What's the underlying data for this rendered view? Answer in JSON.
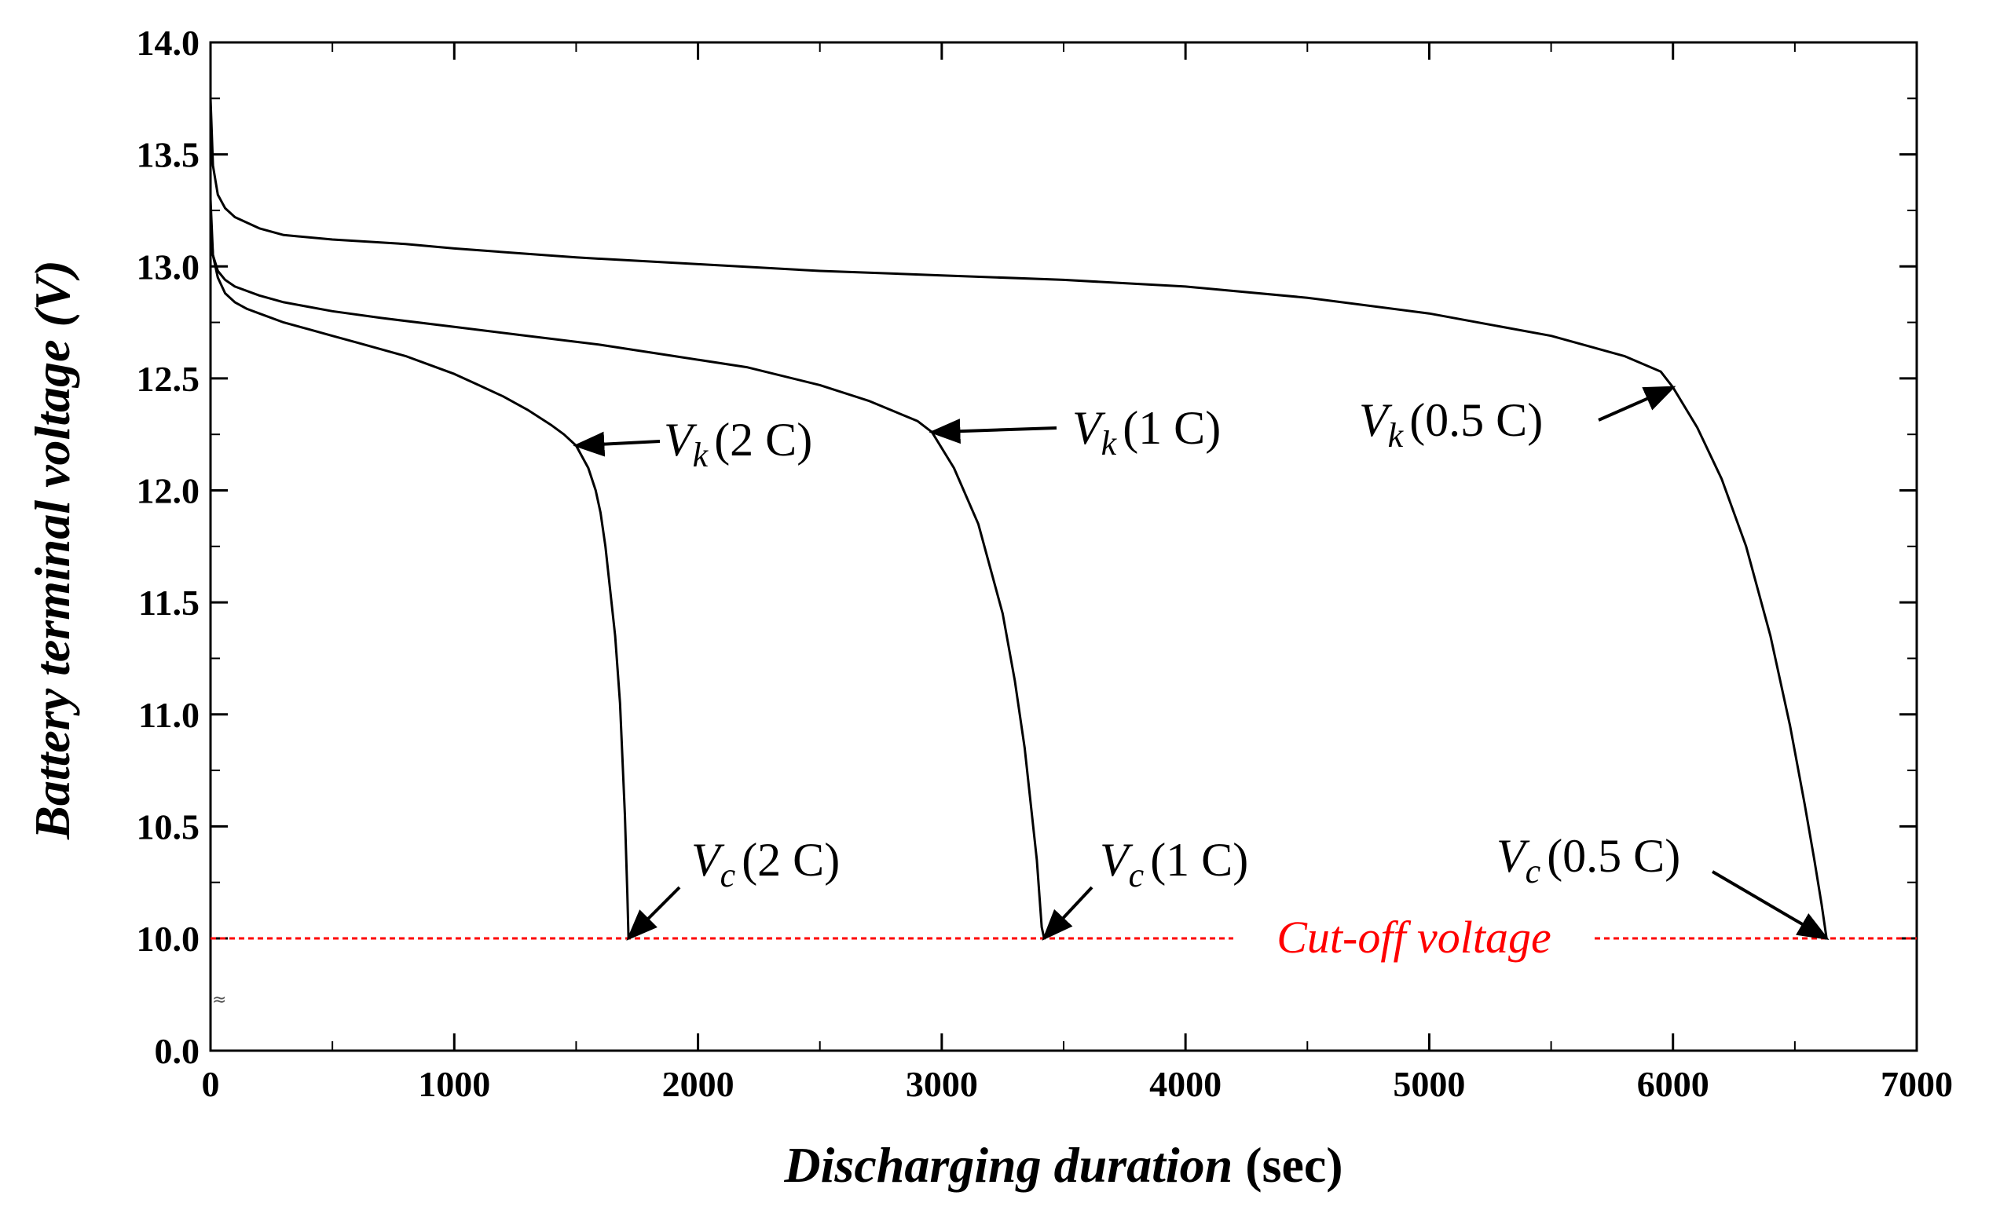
{
  "chart_data": {
    "type": "line",
    "title": "",
    "xlabel": {
      "italic_part": "Discharging duration",
      "plain_part": " (sec)"
    },
    "ylabel": "Battery terminal voltage (V)",
    "xlim": [
      0,
      7000
    ],
    "ylim_segments": [
      [
        0.0,
        0.0
      ],
      [
        10.0,
        14.0
      ]
    ],
    "x_ticks": [
      "0",
      "1000",
      "2000",
      "3000",
      "4000",
      "5000",
      "6000",
      "7000"
    ],
    "x_tick_values": [
      0,
      1000,
      2000,
      3000,
      4000,
      5000,
      6000,
      7000
    ],
    "y_ticks": [
      "0.0",
      "10.0",
      "10.5",
      "11.0",
      "11.5",
      "12.0",
      "12.5",
      "13.0",
      "13.5",
      "14.0"
    ],
    "y_tick_values": [
      0.0,
      10.0,
      10.5,
      11.0,
      11.5,
      12.0,
      12.5,
      13.0,
      13.5,
      14.0
    ],
    "axis_break_mark": "≈",
    "grid": false,
    "series": [
      {
        "name": "2 C",
        "x": [
          0,
          10,
          30,
          60,
          100,
          150,
          200,
          300,
          400,
          500,
          600,
          700,
          800,
          900,
          1000,
          1100,
          1200,
          1300,
          1400,
          1450,
          1500,
          1550,
          1580,
          1600,
          1620,
          1640,
          1660,
          1680,
          1690,
          1700,
          1710,
          1715
        ],
        "y": [
          13.3,
          13.05,
          12.95,
          12.88,
          12.84,
          12.81,
          12.79,
          12.75,
          12.72,
          12.69,
          12.66,
          12.63,
          12.6,
          12.56,
          12.52,
          12.47,
          12.42,
          12.36,
          12.29,
          12.25,
          12.2,
          12.1,
          12.0,
          11.9,
          11.75,
          11.55,
          11.35,
          11.05,
          10.8,
          10.55,
          10.2,
          10.0
        ]
      },
      {
        "name": "1 C",
        "x": [
          0,
          10,
          30,
          60,
          100,
          200,
          300,
          500,
          700,
          1000,
          1300,
          1600,
          1900,
          2200,
          2500,
          2700,
          2900,
          2960,
          3050,
          3150,
          3250,
          3300,
          3340,
          3370,
          3390,
          3400,
          3410,
          3420
        ],
        "y": [
          13.2,
          13.05,
          12.98,
          12.94,
          12.91,
          12.87,
          12.84,
          12.8,
          12.77,
          12.73,
          12.69,
          12.65,
          12.6,
          12.55,
          12.47,
          12.4,
          12.31,
          12.26,
          12.1,
          11.85,
          11.45,
          11.15,
          10.85,
          10.55,
          10.35,
          10.2,
          10.05,
          10.0
        ]
      },
      {
        "name": "0.5 C",
        "x": [
          0,
          10,
          30,
          60,
          100,
          200,
          300,
          500,
          800,
          1000,
          1500,
          2000,
          2500,
          3000,
          3500,
          4000,
          4500,
          5000,
          5500,
          5800,
          5950,
          6000,
          6100,
          6200,
          6300,
          6400,
          6480,
          6540,
          6580,
          6610,
          6630
        ],
        "y": [
          13.75,
          13.45,
          13.32,
          13.26,
          13.22,
          13.17,
          13.14,
          13.12,
          13.1,
          13.08,
          13.04,
          13.01,
          12.98,
          12.96,
          12.94,
          12.91,
          12.86,
          12.79,
          12.69,
          12.6,
          12.53,
          12.46,
          12.28,
          12.05,
          11.75,
          11.35,
          10.95,
          10.6,
          10.35,
          10.15,
          10.0
        ]
      }
    ],
    "cutoff": {
      "value": 10.0,
      "label": "Cut-off voltage",
      "color": "#ff0000"
    },
    "annotations": [
      {
        "id": "vk-2c",
        "symbol": "V",
        "sub": "k",
        "rate": "(2 C)",
        "target_x": 1500,
        "target_y": 12.2
      },
      {
        "id": "vk-1c",
        "symbol": "V",
        "sub": "k",
        "rate": "(1 C)",
        "target_x": 2960,
        "target_y": 12.26
      },
      {
        "id": "vk-05c",
        "symbol": "V",
        "sub": "k",
        "rate": "(0.5 C)",
        "target_x": 6000,
        "target_y": 12.46
      },
      {
        "id": "vc-2c",
        "symbol": "V",
        "sub": "c",
        "rate": "(2 C)",
        "target_x": 1715,
        "target_y": 10.0
      },
      {
        "id": "vc-1c",
        "symbol": "V",
        "sub": "c",
        "rate": "(1 C)",
        "target_x": 3420,
        "target_y": 10.0
      },
      {
        "id": "vc-05c",
        "symbol": "V",
        "sub": "c",
        "rate": "(0.5 C)",
        "target_x": 6630,
        "target_y": 10.0
      }
    ],
    "colors": {
      "line": "#000000",
      "axis": "#000000",
      "cutoff": "#ff0000"
    }
  }
}
